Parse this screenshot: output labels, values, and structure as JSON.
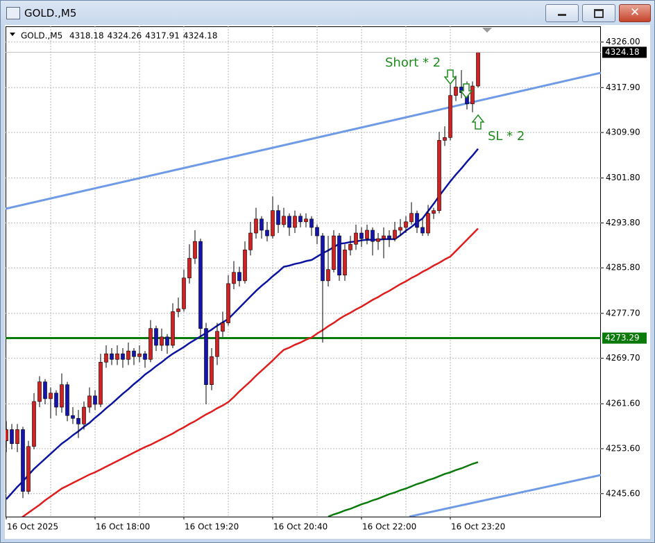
{
  "window": {
    "title": "GOLD.,M5"
  },
  "chart_data": {
    "type": "candlestick",
    "symbol": "GOLD.,M5",
    "up_color": "#d42020",
    "down_color": "#1414b4",
    "grid": true,
    "ylim": [
      4241.5,
      4328.8
    ],
    "yticks": [
      {
        "value": 4326.0,
        "label": "4326.00"
      },
      {
        "value": 4317.9,
        "label": "4317.90"
      },
      {
        "value": 4309.9,
        "label": "4309.90"
      },
      {
        "value": 4301.8,
        "label": "4301.80"
      },
      {
        "value": 4293.8,
        "label": "4293.80"
      },
      {
        "value": 4285.8,
        "label": "4285.80"
      },
      {
        "value": 4277.7,
        "label": "4277.70"
      },
      {
        "value": 4269.7,
        "label": "4269.70"
      },
      {
        "value": 4261.6,
        "label": "4261.60"
      },
      {
        "value": 4253.6,
        "label": "4253.60"
      },
      {
        "value": 4245.6,
        "label": "4245.60"
      }
    ],
    "categories": [
      "16 Oct 2025",
      null,
      null,
      null,
      null,
      null,
      null,
      null,
      null,
      null,
      null,
      null,
      null,
      null,
      null,
      null,
      "16 Oct 18:00",
      null,
      null,
      null,
      null,
      null,
      null,
      null,
      null,
      null,
      null,
      null,
      null,
      null,
      null,
      null,
      "16 Oct 19:20",
      null,
      null,
      null,
      null,
      null,
      null,
      null,
      null,
      null,
      null,
      null,
      null,
      null,
      null,
      null,
      "16 Oct 20:40",
      null,
      null,
      null,
      null,
      null,
      null,
      null,
      null,
      null,
      null,
      null,
      null,
      null,
      null,
      null,
      "16 Oct 22:00",
      null,
      null,
      null,
      null,
      null,
      null,
      null,
      null,
      null,
      null,
      null,
      null,
      null,
      null,
      null,
      "16 Oct 23:20",
      null,
      null,
      null,
      null,
      null
    ],
    "candles": [
      [
        4255.0,
        4258.5,
        4253.0,
        4257.0
      ],
      [
        4257.0,
        4258.0,
        4253.5,
        4254.5
      ],
      [
        4254.5,
        4258.0,
        4253.0,
        4257.0
      ],
      [
        4257.0,
        4257.5,
        4244.8,
        4246.0
      ],
      [
        4246.0,
        4255.0,
        4245.5,
        4254.0
      ],
      [
        4254.0,
        4263.5,
        4253.5,
        4262.0
      ],
      [
        4262.0,
        4266.5,
        4261.0,
        4265.5
      ],
      [
        4265.5,
        4266.0,
        4261.5,
        4262.5
      ],
      [
        4262.5,
        4264.5,
        4259.0,
        4263.5
      ],
      [
        4263.5,
        4264.0,
        4259.5,
        4261.0
      ],
      [
        4261.0,
        4267.0,
        4260.0,
        4265.0
      ],
      [
        4265.0,
        4265.5,
        4258.5,
        4259.5
      ],
      [
        4259.5,
        4261.0,
        4258.0,
        4259.0
      ],
      [
        4259.0,
        4260.5,
        4255.5,
        4258.0
      ],
      [
        4258.0,
        4262.0,
        4257.0,
        4261.0
      ],
      [
        4261.0,
        4264.5,
        4260.0,
        4263.0
      ],
      [
        4263.0,
        4264.0,
        4260.5,
        4261.5
      ],
      [
        4261.5,
        4270.5,
        4261.0,
        4269.0
      ],
      [
        4269.0,
        4272.0,
        4268.0,
        4270.5
      ],
      [
        4270.5,
        4271.5,
        4268.5,
        4269.5
      ],
      [
        4269.5,
        4272.0,
        4268.5,
        4270.5
      ],
      [
        4270.5,
        4271.5,
        4268.0,
        4269.5
      ],
      [
        4269.5,
        4272.5,
        4268.5,
        4271.0
      ],
      [
        4271.0,
        4271.5,
        4268.5,
        4270.0
      ],
      [
        4270.0,
        4272.0,
        4269.0,
        4270.5
      ],
      [
        4270.5,
        4271.0,
        4268.0,
        4269.5
      ],
      [
        4269.5,
        4276.5,
        4269.0,
        4275.0
      ],
      [
        4275.0,
        4275.5,
        4271.0,
        4272.0
      ],
      [
        4272.0,
        4275.0,
        4271.0,
        4273.5
      ],
      [
        4273.5,
        4274.0,
        4270.5,
        4272.0
      ],
      [
        4272.0,
        4279.5,
        4271.5,
        4278.0
      ],
      [
        4278.0,
        4280.5,
        4277.0,
        4278.5
      ],
      [
        4278.5,
        4285.5,
        4278.0,
        4284.0
      ],
      [
        4284.0,
        4290.0,
        4283.0,
        4287.5
      ],
      [
        4287.5,
        4292.5,
        4286.5,
        4290.5
      ],
      [
        4290.5,
        4291.0,
        4273.5,
        4275.0
      ],
      [
        4275.0,
        4276.0,
        4261.5,
        4265.0
      ],
      [
        4265.0,
        4271.5,
        4264.0,
        4270.0
      ],
      [
        4270.0,
        4276.0,
        4268.5,
        4274.5
      ],
      [
        4274.5,
        4278.0,
        4273.5,
        4276.0
      ],
      [
        4276.0,
        4284.5,
        4275.5,
        4283.0
      ],
      [
        4283.0,
        4287.0,
        4282.0,
        4285.0
      ],
      [
        4285.0,
        4286.0,
        4282.5,
        4283.5
      ],
      [
        4283.5,
        4290.5,
        4283.0,
        4289.0
      ],
      [
        4289.0,
        4294.0,
        4288.0,
        4292.0
      ],
      [
        4292.0,
        4296.5,
        4291.0,
        4294.5
      ],
      [
        4294.5,
        4295.0,
        4291.0,
        4292.5
      ],
      [
        4292.5,
        4294.0,
        4290.5,
        4291.5
      ],
      [
        4291.5,
        4298.5,
        4291.0,
        4296.0
      ],
      [
        4296.0,
        4297.0,
        4292.0,
        4293.5
      ],
      [
        4293.5,
        4296.5,
        4293.0,
        4295.0
      ],
      [
        4295.0,
        4295.5,
        4291.5,
        4293.0
      ],
      [
        4293.0,
        4296.0,
        4292.0,
        4295.0
      ],
      [
        4295.0,
        4295.5,
        4293.0,
        4294.0
      ],
      [
        4294.0,
        4295.5,
        4293.0,
        4294.5
      ],
      [
        4294.5,
        4295.0,
        4291.5,
        4293.0
      ],
      [
        4293.0,
        4293.5,
        4290.0,
        4291.5
      ],
      [
        4291.5,
        4292.0,
        4272.5,
        4283.5
      ],
      [
        4283.5,
        4291.5,
        4282.5,
        4285.5
      ],
      [
        4285.5,
        4292.5,
        4285.0,
        4291.5
      ],
      [
        4291.5,
        4292.0,
        4283.5,
        4284.5
      ],
      [
        4284.5,
        4290.0,
        4283.5,
        4289.0
      ],
      [
        4289.0,
        4291.5,
        4288.0,
        4290.0
      ],
      [
        4290.0,
        4293.5,
        4289.0,
        4292.0
      ],
      [
        4292.0,
        4293.0,
        4289.5,
        4291.0
      ],
      [
        4291.0,
        4293.5,
        4290.0,
        4292.5
      ],
      [
        4292.5,
        4293.0,
        4288.0,
        4290.5
      ],
      [
        4290.5,
        4292.0,
        4289.0,
        4291.0
      ],
      [
        4291.0,
        4293.0,
        4287.5,
        4291.5
      ],
      [
        4291.5,
        4292.5,
        4289.5,
        4291.0
      ],
      [
        4291.0,
        4294.0,
        4290.5,
        4292.5
      ],
      [
        4292.5,
        4294.5,
        4291.5,
        4293.0
      ],
      [
        4293.0,
        4295.0,
        4292.0,
        4294.0
      ],
      [
        4294.0,
        4297.5,
        4293.5,
        4295.5
      ],
      [
        4295.5,
        4296.0,
        4292.0,
        4293.0
      ],
      [
        4293.0,
        4294.5,
        4291.5,
        4292.0
      ],
      [
        4292.0,
        4297.0,
        4291.5,
        4295.5
      ],
      [
        4295.5,
        4296.5,
        4294.5,
        4296.0
      ],
      [
        4296.0,
        4310.0,
        4295.5,
        4308.5
      ],
      [
        4308.5,
        4311.0,
        4307.5,
        4309.0
      ],
      [
        4309.0,
        4319.5,
        4308.5,
        4316.5
      ],
      [
        4316.5,
        4320.0,
        4315.5,
        4318.0
      ],
      [
        4318.0,
        4321.0,
        4316.0,
        4317.0
      ],
      [
        4317.0,
        4319.0,
        4314.0,
        4315.0
      ],
      [
        4315.0,
        4319.0,
        4313.5,
        4318.18
      ],
      [
        4318.18,
        4324.26,
        4317.91,
        4324.18
      ]
    ],
    "series": [
      {
        "color": "#0a14a0",
        "values": [
          4244.6,
          4245.7,
          4246.8,
          4247.8,
          4248.9,
          4250.0,
          4250.9,
          4251.8,
          4252.7,
          4253.6,
          4254.5,
          4255.2,
          4256.0,
          4256.7,
          4257.5,
          4258.2,
          4259.1,
          4259.9,
          4260.8,
          4261.6,
          4262.5,
          4263.4,
          4264.2,
          4265.1,
          4265.9,
          4266.8,
          4267.5,
          4268.3,
          4269.0,
          4269.8,
          4270.5,
          4271.1,
          4271.7,
          4272.4,
          4273.0,
          4273.6,
          4274.2,
          4274.8,
          4275.5,
          4276.1,
          4276.7,
          4277.7,
          4278.7,
          4279.7,
          4280.7,
          4281.7,
          4282.6,
          4283.4,
          4284.3,
          4285.1,
          4286.0,
          4286.2,
          4286.5,
          4286.7,
          4287.0,
          4287.2,
          4287.8,
          4288.4,
          4288.9,
          4289.5,
          4290.1,
          4290.2,
          4290.4,
          4290.5,
          4290.7,
          4290.8,
          4290.8,
          4290.8,
          4290.9,
          4290.9,
          4290.9,
          4291.6,
          4292.4,
          4293.1,
          4293.9,
          4294.6,
          4295.9,
          4297.2,
          4298.6,
          4299.9,
          4301.2,
          4302.4,
          4303.5,
          4304.7,
          4305.8,
          4307.0
        ]
      },
      {
        "color": "#e01c1c",
        "values": [
          4239.4,
          4240.1,
          4240.8,
          4241.5,
          4242.2,
          4242.9,
          4243.6,
          4244.4,
          4245.1,
          4245.8,
          4246.5,
          4247.0,
          4247.5,
          4248.0,
          4248.5,
          4249.0,
          4249.4,
          4249.9,
          4250.4,
          4250.9,
          4251.4,
          4251.9,
          4252.4,
          4252.9,
          4253.4,
          4253.9,
          4254.3,
          4254.8,
          4255.3,
          4255.8,
          4256.3,
          4256.9,
          4257.4,
          4258.0,
          4258.5,
          4259.1,
          4259.7,
          4260.2,
          4260.8,
          4261.3,
          4261.9,
          4262.8,
          4263.8,
          4264.7,
          4265.6,
          4266.6,
          4267.5,
          4268.4,
          4269.3,
          4270.3,
          4271.2,
          4271.6,
          4272.1,
          4272.5,
          4273.0,
          4273.4,
          4274.1,
          4274.7,
          4275.4,
          4276.0,
          4276.7,
          4277.3,
          4277.8,
          4278.4,
          4278.9,
          4279.5,
          4280.1,
          4280.6,
          4281.2,
          4281.7,
          4282.3,
          4282.9,
          4283.4,
          4284.0,
          4284.5,
          4285.1,
          4285.6,
          4286.2,
          4286.7,
          4287.3,
          4287.8,
          4288.8,
          4289.8,
          4290.8,
          4291.8,
          4292.8
        ]
      },
      {
        "color": "#0a7a0a",
        "values": [
          null,
          null,
          null,
          null,
          null,
          null,
          null,
          null,
          null,
          null,
          null,
          null,
          null,
          null,
          null,
          null,
          null,
          null,
          null,
          null,
          null,
          null,
          null,
          null,
          null,
          null,
          null,
          null,
          null,
          null,
          null,
          null,
          null,
          null,
          null,
          null,
          null,
          null,
          null,
          null,
          null,
          null,
          null,
          null,
          null,
          null,
          null,
          null,
          null,
          null,
          null,
          null,
          null,
          null,
          null,
          null,
          null,
          null,
          4241.5,
          4241.9,
          4242.2,
          4242.6,
          4242.9,
          4243.3,
          4243.7,
          4244.0,
          4244.4,
          4244.7,
          4245.1,
          4245.5,
          4245.8,
          4246.2,
          4246.5,
          4246.9,
          4247.3,
          4247.6,
          4248.0,
          4248.3,
          4248.7,
          4249.1,
          4249.4,
          4249.8,
          4250.1,
          4250.5,
          4250.9,
          4251.2
        ]
      }
    ],
    "hline": {
      "value": 4273.29,
      "color": "#0a7a0a"
    },
    "annotations": [
      {
        "text": "Short * 2",
        "color": "#1e8c1e"
      },
      {
        "text": "SL * 2",
        "color": "#1e8c1e"
      }
    ]
  }
}
